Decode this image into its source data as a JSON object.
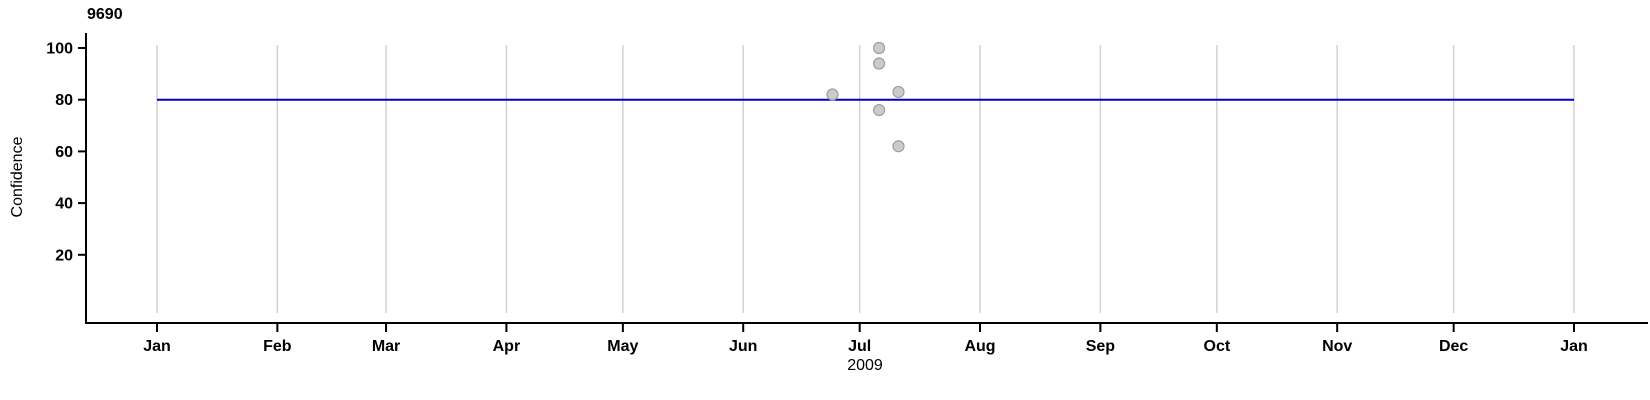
{
  "chart_data": {
    "type": "scatter",
    "title": "9690",
    "xlabel": "2009",
    "ylabel": "Confidence",
    "x_axis": {
      "unit": "months of 2009",
      "tick_labels": [
        "Jan",
        "Feb",
        "Mar",
        "Apr",
        "May",
        "Jun",
        "Jul",
        "Aug",
        "Sep",
        "Oct",
        "Nov",
        "Dec",
        "Jan"
      ],
      "tick_days": [
        0,
        31,
        59,
        90,
        120,
        151,
        181,
        212,
        243,
        273,
        304,
        334,
        365
      ],
      "range_days": [
        0,
        365
      ],
      "grid": true
    },
    "y_axis": {
      "tick_labels": [
        "20",
        "40",
        "60",
        "80",
        "100"
      ],
      "ticks": [
        20,
        40,
        60,
        80,
        100
      ],
      "range": [
        0,
        106
      ],
      "grid": false
    },
    "reference_line": {
      "y": 80
    },
    "points": [
      {
        "date": "2009-06-23",
        "day": 174,
        "confidence": 82
      },
      {
        "date": "2009-07-05",
        "day": 186,
        "confidence": 100
      },
      {
        "date": "2009-07-05",
        "day": 186,
        "confidence": 94
      },
      {
        "date": "2009-07-05",
        "day": 186,
        "confidence": 76
      },
      {
        "date": "2009-07-10",
        "day": 191,
        "confidence": 83
      },
      {
        "date": "2009-07-10",
        "day": 191,
        "confidence": 62
      }
    ],
    "colors": {
      "reference_line": "#0000cc",
      "grid": "#d2d2d2",
      "axis": "#000000",
      "point_fill": "#cbcbcb",
      "point_stroke": "#9e9e9e"
    },
    "legend": null
  }
}
